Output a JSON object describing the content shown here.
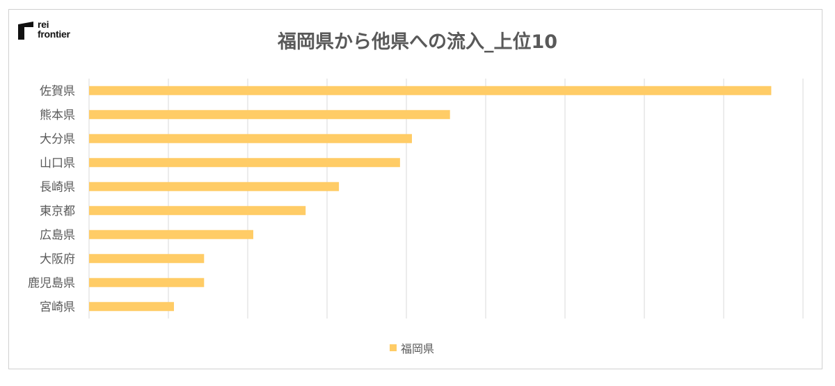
{
  "logo": {
    "line1": "rei",
    "line2": "frontier"
  },
  "chart_data": {
    "type": "bar",
    "orientation": "horizontal",
    "title": "福岡県から他県への流入_上位10",
    "categories": [
      "佐賀県",
      "熊本県",
      "大分県",
      "山口県",
      "長崎県",
      "東京都",
      "広島県",
      "大阪府",
      "鹿児島県",
      "宮崎県"
    ],
    "series": [
      {
        "name": "福岡県",
        "color": "#FFCC66",
        "values": [
          8.6,
          4.55,
          4.07,
          3.92,
          3.15,
          2.73,
          2.07,
          1.45,
          1.45,
          1.07
        ]
      }
    ],
    "xlim": [
      0,
      9
    ],
    "grid": true,
    "xaxis_tick_labels_shown": false,
    "legend_position": "bottom"
  }
}
